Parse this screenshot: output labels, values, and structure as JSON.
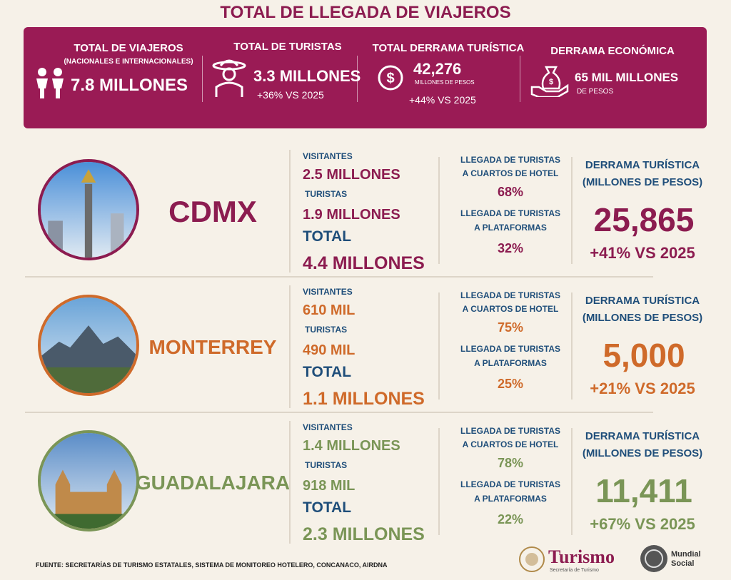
{
  "title": "TOTAL DE LLEGADA DE VIAJEROS",
  "summary": [
    {
      "label": "TOTAL DE VIAJEROS",
      "sublabel": "(NACIONALES E INTERNACIONALES)",
      "value": "7.8 MILLONES"
    },
    {
      "label": "TOTAL DE TURISTAS",
      "value": "3.3 MILLONES",
      "change": "+36% VS 2025"
    },
    {
      "label": "TOTAL DERRAMA TURÍSTICA",
      "value": "42,276",
      "unit": "MILLONES DE PESOS",
      "change": "+44% VS 2025"
    },
    {
      "label": "DERRAMA ECONÓMICA",
      "value": "65 MIL MILLONES",
      "unit": "DE PESOS"
    }
  ],
  "cities": [
    {
      "name": "CDMX",
      "color": "#8c1c50",
      "visitors_label": "VISITANTES",
      "visitors": "2.5 MILLONES",
      "tourists_label": "TURISTAS",
      "tourists": "1.9 MILLONES",
      "total_label": "TOTAL",
      "total": "4.4 MILLONES",
      "hotel_label": [
        "LLEGADA DE TURISTAS",
        "A CUARTOS DE HOTEL"
      ],
      "hotel": "68%",
      "platform_label": [
        "LLEGADA DE TURISTAS",
        "A PLATAFORMAS"
      ],
      "platform": "32%",
      "spend_label": [
        "DERRAMA TURÍSTICA",
        "(MILLONES DE PESOS)"
      ],
      "spend": "25,865",
      "change": "+41% VS 2025"
    },
    {
      "name": "MONTERREY",
      "color": "#cf6a2a",
      "visitors_label": "VISITANTES",
      "visitors": "610 MIL",
      "tourists_label": "TURISTAS",
      "tourists": "490 MIL",
      "total_label": "TOTAL",
      "total": "1.1 MILLONES",
      "hotel_label": [
        "LLEGADA DE TURISTAS",
        "A CUARTOS DE HOTEL"
      ],
      "hotel": "75%",
      "platform_label": [
        "LLEGADA DE TURISTAS",
        "A PLATAFORMAS"
      ],
      "platform": "25%",
      "spend_label": [
        "DERRAMA TURÍSTICA",
        "(MILLONES DE PESOS)"
      ],
      "spend": "5,000",
      "change": "+21% VS 2025"
    },
    {
      "name": "GUADALAJARA",
      "color": "#7a9556",
      "visitors_label": "VISITANTES",
      "visitors": "1.4 MILLONES",
      "tourists_label": "TURISTAS",
      "tourists": "918 MIL",
      "total_label": "TOTAL",
      "total": "2.3 MILLONES",
      "hotel_label": [
        "LLEGADA DE TURISTAS",
        "A CUARTOS DE HOTEL"
      ],
      "hotel": "78%",
      "platform_label": [
        "LLEGADA DE TURISTAS",
        "A PLATAFORMAS"
      ],
      "platform": "22%",
      "spend_label": [
        "DERRAMA TURÍSTICA",
        "(MILLONES DE PESOS)"
      ],
      "spend": "11,411",
      "change": "+67% VS 2025"
    }
  ],
  "source": "FUENTE: SECRETARÍAS DE TURISMO ESTATALES, SISTEMA DE MONITOREO HOTELERO, CONCANACO, AIRDNA",
  "logos": {
    "turismo": "Turismo",
    "turismo_sub": "Secretaría de Turismo",
    "mundial": [
      "Mundial",
      "Social"
    ]
  }
}
